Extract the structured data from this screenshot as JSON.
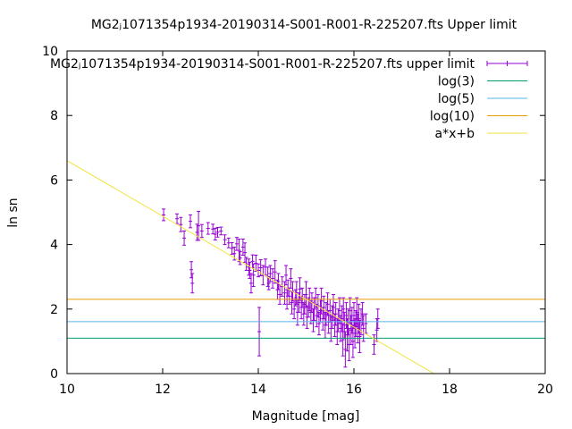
{
  "chart_data": {
    "type": "scatter",
    "title": "MG2ⱼ1071354p1934-20190314-S001-R001-R-225207.fts Upper limit",
    "xlabel": "Magnitude [mag]",
    "ylabel": "ln sn",
    "xlim": [
      10,
      20
    ],
    "ylim": [
      0,
      10
    ],
    "xticks": [
      "10",
      "12",
      "14",
      "16",
      "18",
      "20"
    ],
    "yticks": [
      "0",
      "2",
      "4",
      "6",
      "8",
      "10"
    ],
    "grid": false,
    "legend_position": "top-right",
    "series": [
      {
        "name": "MG2ⱼ1071354p1934-20190314-S001-R001-R-225207.fts upper limit",
        "kind": "errorbar",
        "color": "#9400d3",
        "points": [
          [
            12.02,
            4.92,
            0.18
          ],
          [
            12.3,
            4.8,
            0.15
          ],
          [
            12.38,
            4.62,
            0.22
          ],
          [
            12.45,
            4.2,
            0.22
          ],
          [
            12.58,
            4.72,
            0.2
          ],
          [
            12.6,
            3.22,
            0.25
          ],
          [
            12.62,
            2.8,
            0.3
          ],
          [
            12.72,
            4.38,
            0.25
          ],
          [
            12.75,
            4.58,
            0.45
          ],
          [
            12.82,
            4.42,
            0.2
          ],
          [
            12.95,
            4.5,
            0.18
          ],
          [
            13.05,
            4.48,
            0.15
          ],
          [
            13.1,
            4.32,
            0.18
          ],
          [
            13.15,
            4.38,
            0.15
          ],
          [
            13.22,
            4.42,
            0.12
          ],
          [
            13.3,
            4.15,
            0.15
          ],
          [
            13.38,
            4.05,
            0.15
          ],
          [
            13.45,
            3.88,
            0.18
          ],
          [
            13.5,
            3.72,
            0.2
          ],
          [
            13.55,
            4.02,
            0.2
          ],
          [
            13.6,
            3.82,
            0.35
          ],
          [
            13.62,
            3.58,
            0.2
          ],
          [
            13.68,
            3.92,
            0.25
          ],
          [
            13.72,
            3.75,
            0.3
          ],
          [
            13.75,
            3.4,
            0.2
          ],
          [
            13.8,
            3.3,
            0.25
          ],
          [
            13.82,
            3.2,
            0.25
          ],
          [
            13.85,
            2.8,
            0.3
          ],
          [
            13.88,
            3.48,
            0.2
          ],
          [
            13.9,
            3.05,
            0.35
          ],
          [
            13.95,
            3.42,
            0.25
          ],
          [
            14.0,
            3.2,
            0.2
          ],
          [
            14.02,
            1.3,
            0.75
          ],
          [
            14.05,
            3.28,
            0.25
          ],
          [
            14.1,
            3.05,
            0.3
          ],
          [
            14.15,
            3.3,
            0.25
          ],
          [
            14.2,
            3.0,
            0.3
          ],
          [
            14.22,
            2.8,
            0.2
          ],
          [
            14.25,
            3.1,
            0.25
          ],
          [
            14.3,
            2.95,
            0.3
          ],
          [
            14.35,
            3.15,
            0.35
          ],
          [
            14.4,
            2.6,
            0.3
          ],
          [
            14.42,
            2.85,
            0.25
          ],
          [
            14.45,
            2.45,
            0.3
          ],
          [
            14.5,
            2.7,
            0.3
          ],
          [
            14.55,
            2.5,
            0.35
          ],
          [
            14.58,
            3.05,
            0.3
          ],
          [
            14.6,
            2.3,
            0.3
          ],
          [
            14.62,
            2.65,
            0.25
          ],
          [
            14.65,
            2.4,
            0.25
          ],
          [
            14.68,
            2.95,
            0.3
          ],
          [
            14.7,
            2.2,
            0.35
          ],
          [
            14.72,
            2.55,
            0.3
          ],
          [
            14.75,
            2.0,
            0.3
          ],
          [
            14.78,
            2.35,
            0.25
          ],
          [
            14.8,
            2.5,
            0.35
          ],
          [
            14.82,
            1.9,
            0.4
          ],
          [
            14.85,
            2.2,
            0.3
          ],
          [
            14.87,
            2.62,
            0.35
          ],
          [
            14.9,
            2.05,
            0.35
          ],
          [
            14.92,
            2.35,
            0.3
          ],
          [
            14.95,
            1.85,
            0.35
          ],
          [
            14.97,
            2.15,
            0.3
          ],
          [
            15.0,
            2.45,
            0.4
          ],
          [
            15.02,
            1.75,
            0.35
          ],
          [
            15.05,
            2.05,
            0.3
          ],
          [
            15.07,
            2.3,
            0.35
          ],
          [
            15.1,
            1.9,
            0.35
          ],
          [
            15.12,
            2.2,
            0.3
          ],
          [
            15.15,
            1.65,
            0.35
          ],
          [
            15.17,
            2.0,
            0.35
          ],
          [
            15.2,
            2.35,
            0.3
          ],
          [
            15.22,
            1.8,
            0.35
          ],
          [
            15.25,
            2.1,
            0.35
          ],
          [
            15.27,
            1.55,
            0.35
          ],
          [
            15.3,
            1.95,
            0.35
          ],
          [
            15.32,
            2.25,
            0.4
          ],
          [
            15.35,
            1.7,
            0.35
          ],
          [
            15.37,
            2.05,
            0.35
          ],
          [
            15.4,
            1.5,
            0.4
          ],
          [
            15.42,
            1.85,
            0.35
          ],
          [
            15.45,
            2.15,
            0.35
          ],
          [
            15.47,
            1.6,
            0.35
          ],
          [
            15.5,
            1.95,
            0.35
          ],
          [
            15.52,
            1.4,
            0.4
          ],
          [
            15.55,
            1.75,
            0.35
          ],
          [
            15.57,
            2.05,
            0.4
          ],
          [
            15.6,
            1.5,
            0.35
          ],
          [
            15.62,
            1.85,
            0.35
          ],
          [
            15.65,
            1.3,
            0.4
          ],
          [
            15.67,
            1.65,
            0.35
          ],
          [
            15.7,
            1.95,
            0.4
          ],
          [
            15.72,
            1.4,
            0.4
          ],
          [
            15.75,
            1.7,
            0.4
          ],
          [
            15.77,
            1.05,
            0.5
          ],
          [
            15.78,
            2.0,
            0.35
          ],
          [
            15.8,
            1.5,
            0.4
          ],
          [
            15.82,
            0.75,
            0.55
          ],
          [
            15.84,
            1.8,
            0.4
          ],
          [
            15.86,
            1.2,
            0.5
          ],
          [
            15.88,
            1.6,
            0.4
          ],
          [
            15.9,
            0.9,
            0.5
          ],
          [
            15.92,
            1.95,
            0.4
          ],
          [
            15.94,
            1.35,
            0.45
          ],
          [
            15.96,
            1.65,
            0.4
          ],
          [
            15.98,
            1.0,
            0.5
          ],
          [
            16.0,
            1.8,
            0.4
          ],
          [
            16.02,
            1.25,
            0.45
          ],
          [
            16.04,
            1.55,
            0.4
          ],
          [
            16.06,
            1.9,
            0.45
          ],
          [
            16.08,
            1.4,
            0.45
          ],
          [
            16.1,
            1.7,
            0.45
          ],
          [
            16.12,
            1.15,
            0.5
          ],
          [
            16.15,
            1.6,
            0.4
          ],
          [
            16.18,
            1.85,
            0.35
          ],
          [
            16.2,
            1.4,
            0.4
          ],
          [
            16.25,
            1.55,
            0.3
          ],
          [
            16.42,
            0.9,
            0.3
          ],
          [
            16.48,
            1.35,
            0.35
          ],
          [
            16.5,
            1.7,
            0.3
          ]
        ]
      },
      {
        "name": "log(3)",
        "kind": "hline",
        "y": 1.0986,
        "color": "#009e73"
      },
      {
        "name": "log(5)",
        "kind": "hline",
        "y": 1.6094,
        "color": "#56b4e9"
      },
      {
        "name": "log(10)",
        "kind": "hline",
        "y": 2.3026,
        "color": "#e69f00"
      },
      {
        "name": "a*x+b",
        "kind": "line",
        "slope": -0.86,
        "intercept": 15.2,
        "color": "#f0e442"
      }
    ]
  }
}
